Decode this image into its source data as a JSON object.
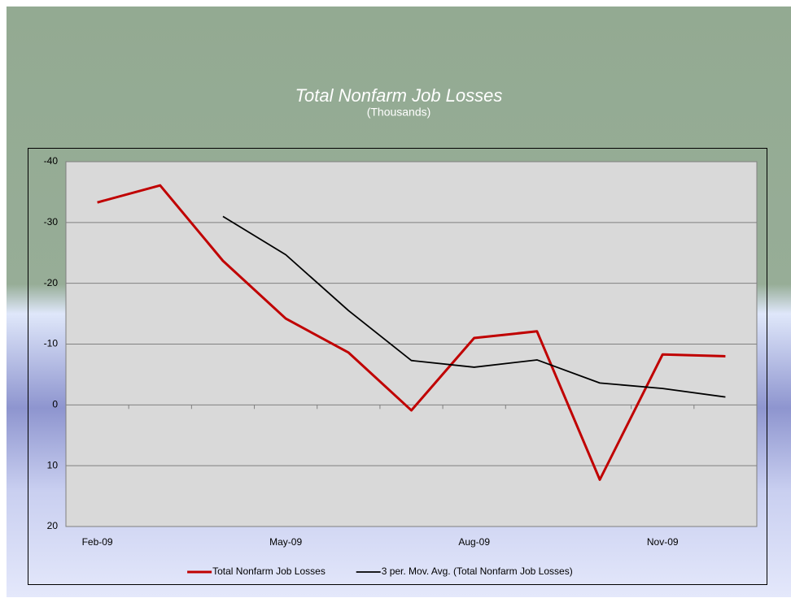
{
  "chart_data": {
    "type": "line",
    "title": "Total Nonfarm Job Losses",
    "subtitle": "(Thousands)",
    "categories": [
      "Feb-09",
      null,
      null,
      "May-09",
      null,
      null,
      "Aug-09",
      null,
      null,
      "Nov-09",
      null
    ],
    "series": [
      {
        "name": "Total Nonfarm Job Losses",
        "color": "#c00000",
        "values": [
          -33.3,
          -36.1,
          -23.7,
          -14.2,
          -8.6,
          0.9,
          -11.0,
          -12.1,
          12.3,
          -8.3,
          -8.0
        ]
      },
      {
        "name": "3 per. Mov. Avg. (Total Nonfarm Job Losses)",
        "color": "#000000",
        "values": [
          null,
          null,
          -31.0,
          -24.7,
          -15.5,
          -7.3,
          -6.2,
          -7.4,
          -3.6,
          -2.7,
          -1.3
        ]
      }
    ],
    "ylim": [
      -40,
      20
    ],
    "y_reversed": true,
    "yticks": [
      -40,
      -30,
      -20,
      -10,
      0,
      10,
      20
    ],
    "grid": true,
    "legend": "bottom"
  }
}
